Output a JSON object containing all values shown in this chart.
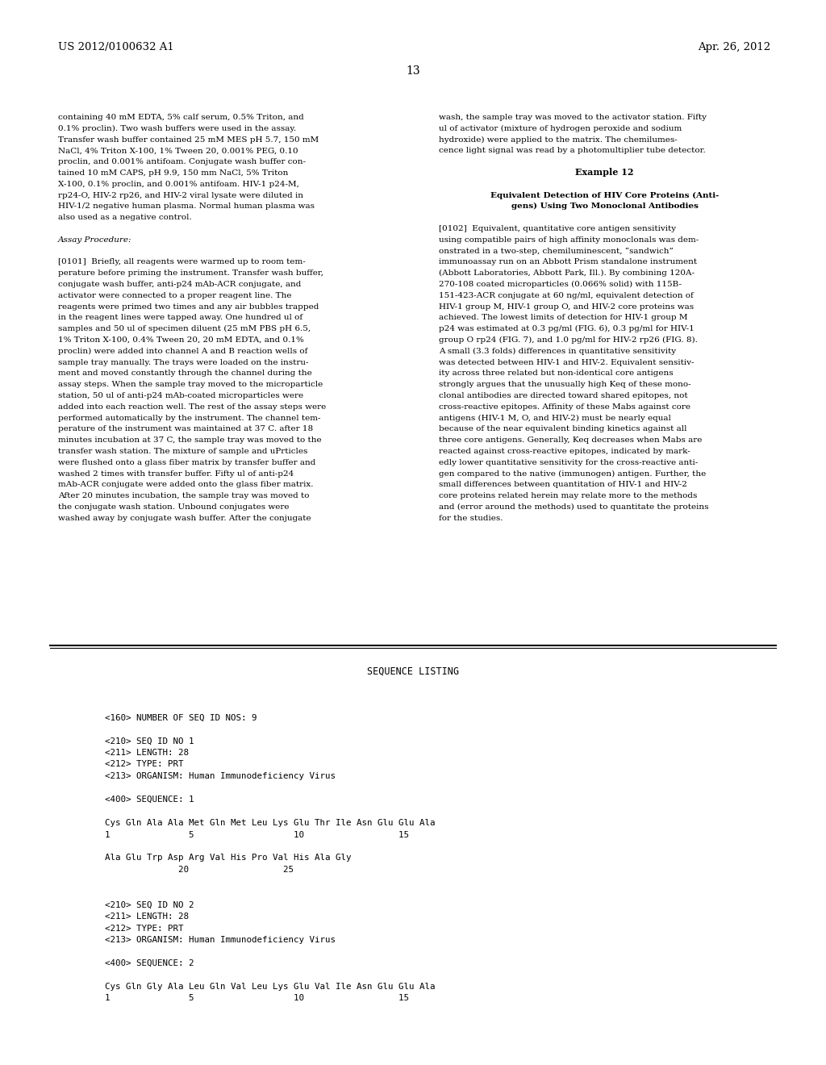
{
  "bg_color": "#ffffff",
  "header_left": "US 2012/0100632 A1",
  "header_right": "Apr. 26, 2012",
  "page_number": "13",
  "left_column_text": [
    "containing 40 mM EDTA, 5% calf serum, 0.5% Triton, and",
    "0.1% proclin). Two wash buffers were used in the assay.",
    "Transfer wash buffer contained 25 mM MES pH 5.7, 150 mM",
    "NaCl, 4% Triton X-100, 1% Tween 20, 0.001% PEG, 0.10",
    "proclin, and 0.001% antifoam. Conjugate wash buffer con-",
    "tained 10 mM CAPS, pH 9.9, 150 mm NaCl, 5% Triton",
    "X-100, 0.1% proclin, and 0.001% antifoam. HIV-1 p24-M,",
    "rp24-O, HIV-2 rp26, and HIV-2 viral lysate were diluted in",
    "HIV-1/2 negative human plasma. Normal human plasma was",
    "also used as a negative control.",
    "",
    "Assay Procedure:",
    "",
    "[0101]  Briefly, all reagents were warmed up to room tem-",
    "perature before priming the instrument. Transfer wash buffer,",
    "conjugate wash buffer, anti-p24 mAb-ACR conjugate, and",
    "activator were connected to a proper reagent line. The",
    "reagents were primed two times and any air bubbles trapped",
    "in the reagent lines were tapped away. One hundred ul of",
    "samples and 50 ul of specimen diluent (25 mM PBS pH 6.5,",
    "1% Triton X-100, 0.4% Tween 20, 20 mM EDTA, and 0.1%",
    "proclin) were added into channel A and B reaction wells of",
    "sample tray manually. The trays were loaded on the instru-",
    "ment and moved constantly through the channel during the",
    "assay steps. When the sample tray moved to the microparticle",
    "station, 50 ul of anti-p24 mAb-coated microparticles were",
    "added into each reaction well. The rest of the assay steps were",
    "performed automatically by the instrument. The channel tem-",
    "perature of the instrument was maintained at 37 C. after 18",
    "minutes incubation at 37 C, the sample tray was moved to the",
    "transfer wash station. The mixture of sample and uPrticles",
    "were flushed onto a glass fiber matrix by transfer buffer and",
    "washed 2 times with transfer buffer. Fifty ul of anti-p24",
    "mAb-ACR conjugate were added onto the glass fiber matrix.",
    "After 20 minutes incubation, the sample tray was moved to",
    "the conjugate wash station. Unbound conjugates were",
    "washed away by conjugate wash buffer. After the conjugate"
  ],
  "right_column_text": [
    "wash, the sample tray was moved to the activator station. Fifty",
    "ul of activator (mixture of hydrogen peroxide and sodium",
    "hydroxide) were applied to the matrix. The chemilumes-",
    "cence light signal was read by a photomultiplier tube detector.",
    "",
    "Example 12",
    "",
    "Equivalent Detection of HIV Core Proteins (Anti-",
    "gens) Using Two Monoclonal Antibodies",
    "",
    "[0102]  Equivalent, quantitative core antigen sensitivity",
    "using compatible pairs of high affinity monoclonals was dem-",
    "onstrated in a two-step, chemiluminescent, “sandwich”",
    "immunoassay run on an Abbott Prism standalone instrument",
    "(Abbott Laboratories, Abbott Park, Ill.). By combining 120A-",
    "270-108 coated microparticles (0.066% solid) with 115B-",
    "151-423-ACR conjugate at 60 ng/ml, equivalent detection of",
    "HIV-1 group M, HIV-1 group O, and HIV-2 core proteins was",
    "achieved. The lowest limits of detection for HIV-1 group M",
    "p24 was estimated at 0.3 pg/ml (FIG. 6), 0.3 pg/ml for HIV-1",
    "group O rp24 (FIG. 7), and 1.0 pg/ml for HIV-2 rp26 (FIG. 8).",
    "A small (3.3 folds) differences in quantitative sensitivity",
    "was detected between HIV-1 and HIV-2. Equivalent sensitiv-",
    "ity across three related but non-identical core antigens",
    "strongly argues that the unusually high Keq of these mono-",
    "clonal antibodies are directed toward shared epitopes, not",
    "cross-reactive epitopes. Affinity of these Mabs against core",
    "antigens (HIV-1 M, O, and HIV-2) must be nearly equal",
    "because of the near equivalent binding kinetics against all",
    "three core antigens. Generally, Keq decreases when Mabs are",
    "reacted against cross-reactive epitopes, indicated by mark-",
    "edly lower quantitative sensitivity for the cross-reactive anti-",
    "gen compared to the native (immunogen) antigen. Further, the",
    "small differences between quantitation of HIV-1 and HIV-2",
    "core proteins related herein may relate more to the methods",
    "and (error around the methods) used to quantitate the proteins",
    "for the studies."
  ],
  "sequence_listing_title": "SEQUENCE LISTING",
  "sequence_lines": [
    "",
    "<160> NUMBER OF SEQ ID NOS: 9",
    "",
    "<210> SEQ ID NO 1",
    "<211> LENGTH: 28",
    "<212> TYPE: PRT",
    "<213> ORGANISM: Human Immunodeficiency Virus",
    "",
    "<400> SEQUENCE: 1",
    "",
    "Cys Gln Ala Ala Met Gln Met Leu Lys Glu Thr Ile Asn Glu Glu Ala",
    "1               5                   10                  15",
    "",
    "Ala Glu Trp Asp Arg Val His Pro Val His Ala Gly",
    "              20                  25",
    "",
    "",
    "<210> SEQ ID NO 2",
    "<211> LENGTH: 28",
    "<212> TYPE: PRT",
    "<213> ORGANISM: Human Immunodeficiency Virus",
    "",
    "<400> SEQUENCE: 2",
    "",
    "Cys Gln Gly Ala Leu Gln Val Leu Lys Glu Val Ile Asn Glu Glu Ala",
    "1               5                   10                  15"
  ]
}
